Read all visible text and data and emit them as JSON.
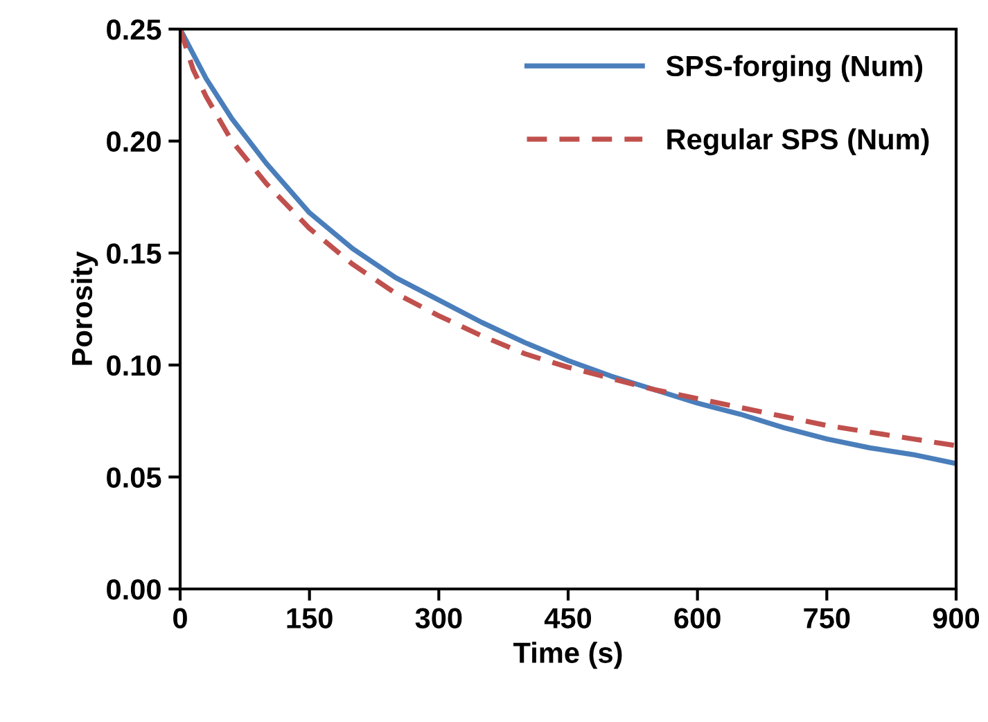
{
  "chart_data": {
    "type": "line",
    "xlabel": "Time (s)",
    "ylabel": "Porosity",
    "xlim": [
      0,
      900
    ],
    "xticks": [
      0,
      150,
      300,
      450,
      600,
      750,
      900
    ],
    "ylim": [
      0,
      0.25
    ],
    "yticks": [
      {
        "value": 0,
        "label": "0.00"
      },
      {
        "value": 0.05,
        "label": "0.05"
      },
      {
        "value": 0.1,
        "label": "0.10"
      },
      {
        "value": 0.15,
        "label": "0.15"
      },
      {
        "value": 0.2,
        "label": "0.20"
      },
      {
        "value": 0.25,
        "label": "0.25"
      }
    ],
    "grid": false,
    "legend": "top right",
    "marker": "none",
    "series": [
      {
        "name": "SPS-forging (Num)",
        "color": "#4a7ebb",
        "line_style": "solid",
        "x": [
          0,
          30,
          60,
          100,
          150,
          200,
          250,
          300,
          350,
          400,
          450,
          500,
          550,
          600,
          650,
          700,
          750,
          800,
          850,
          900
        ],
        "values": [
          0.25,
          0.228,
          0.21,
          0.19,
          0.168,
          0.152,
          0.139,
          0.129,
          0.119,
          0.11,
          0.102,
          0.095,
          0.089,
          0.083,
          0.078,
          0.072,
          0.067,
          0.063,
          0.06,
          0.056
        ]
      },
      {
        "name": "Regular SPS (Num)",
        "color": "#c0504d",
        "line_style": "dashed",
        "x": [
          0,
          15,
          30,
          60,
          100,
          150,
          200,
          250,
          300,
          350,
          400,
          450,
          500,
          550,
          600,
          650,
          700,
          750,
          800,
          850,
          900
        ],
        "values": [
          0.25,
          0.232,
          0.22,
          0.2,
          0.181,
          0.161,
          0.145,
          0.132,
          0.122,
          0.113,
          0.105,
          0.099,
          0.094,
          0.089,
          0.085,
          0.081,
          0.077,
          0.073,
          0.07,
          0.067,
          0.064
        ]
      }
    ]
  }
}
